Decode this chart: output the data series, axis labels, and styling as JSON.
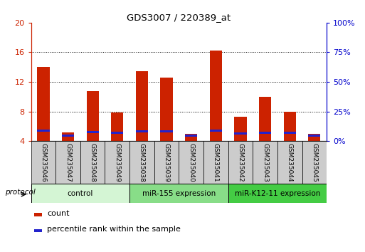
{
  "title": "GDS3007 / 220389_at",
  "samples": [
    "GSM235046",
    "GSM235047",
    "GSM235048",
    "GSM235049",
    "GSM235038",
    "GSM235039",
    "GSM235040",
    "GSM235041",
    "GSM235042",
    "GSM235043",
    "GSM235044",
    "GSM235045"
  ],
  "count_values": [
    14.0,
    5.2,
    10.8,
    7.9,
    13.4,
    12.6,
    5.0,
    16.2,
    7.3,
    10.0,
    8.0,
    5.0
  ],
  "percentile_values": [
    8.6,
    4.8,
    7.7,
    6.9,
    8.1,
    8.0,
    4.85,
    9.0,
    6.6,
    7.2,
    6.8,
    4.85
  ],
  "groups": [
    {
      "label": "control",
      "start": 0,
      "end": 4,
      "color": "#d4f5d4"
    },
    {
      "label": "miR-155 expression",
      "start": 4,
      "end": 8,
      "color": "#88dd88"
    },
    {
      "label": "miR-K12-11 expression",
      "start": 8,
      "end": 12,
      "color": "#44cc44"
    }
  ],
  "ylim_left": [
    4,
    20
  ],
  "ylim_right": [
    0,
    100
  ],
  "yticks_left": [
    4,
    8,
    12,
    16,
    20
  ],
  "yticks_right": [
    0,
    25,
    50,
    75,
    100
  ],
  "left_color": "#cc2200",
  "right_color": "#0000cc",
  "bar_color": "#cc2200",
  "pct_color": "#2222cc",
  "bg_color": "#ffffff",
  "protocol_label": "protocol",
  "legend_count": "count",
  "legend_pct": "percentile rank within the sample",
  "tick_label_color": "#444444",
  "xlabel_box_color": "#cccccc"
}
